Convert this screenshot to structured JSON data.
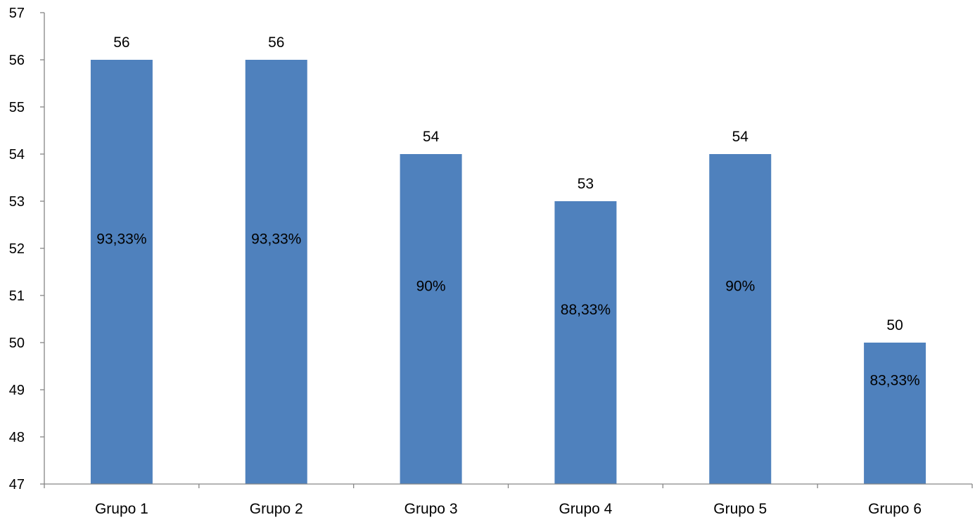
{
  "chart_data": {
    "type": "bar",
    "title": "",
    "xlabel": "",
    "ylabel": "",
    "categories": [
      "Grupo 1",
      "Grupo 2",
      "Grupo 3",
      "Grupo 4",
      "Grupo 5",
      "Grupo 6"
    ],
    "values": [
      56,
      56,
      54,
      53,
      54,
      50
    ],
    "value_labels": [
      "56",
      "56",
      "54",
      "53",
      "54",
      "50"
    ],
    "percent_labels": [
      "93,33%",
      "93,33%",
      "90%",
      "88,33%",
      "90%",
      "83,33%"
    ],
    "ylim": [
      47,
      57
    ],
    "yticks": [
      "47",
      "48",
      "49",
      "50",
      "51",
      "52",
      "53",
      "54",
      "55",
      "56",
      "57"
    ],
    "grid": false,
    "legend": "none",
    "bar_color": "#4F81BD",
    "axis_color": "#868686"
  }
}
